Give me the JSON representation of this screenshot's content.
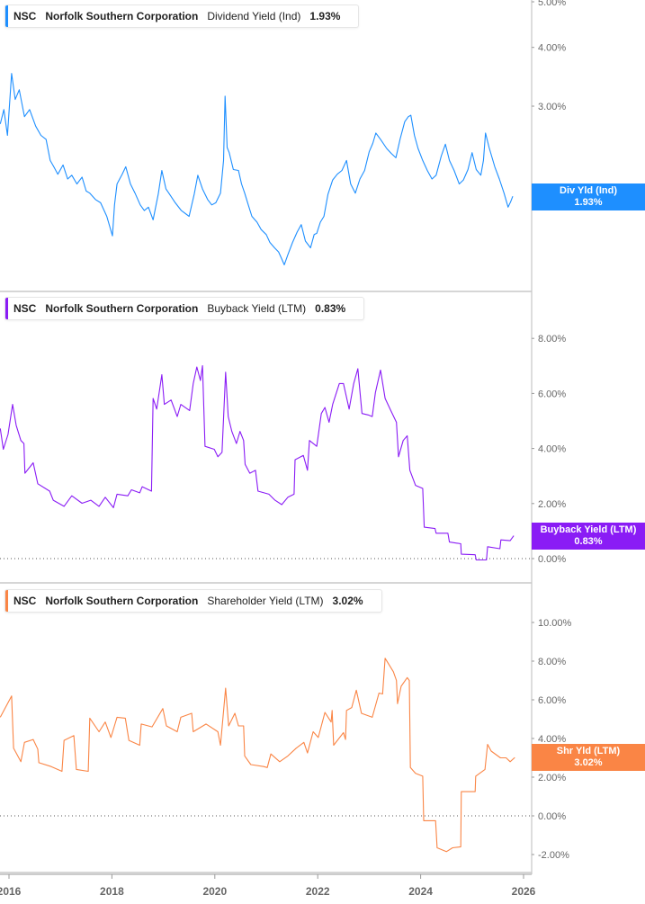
{
  "x_axis": {
    "ticks": [
      "2016",
      "2018",
      "2020",
      "2022",
      "2024",
      "2026"
    ],
    "range": [
      2015.83,
      2026.1
    ]
  },
  "chart_data": [
    {
      "type": "line",
      "yscale": "log",
      "ylim": [
        1.22,
        5.0
      ],
      "color": "#1e8fff",
      "legend": {
        "ticker": "NSC",
        "company": "Norfolk Southern Corporation",
        "metric": "Dividend Yield (Ind)",
        "value": "1.93%"
      },
      "flag": {
        "label": "Div Yld (Ind)",
        "value": "1.93%"
      },
      "yticks": [
        {
          "v": 5,
          "label": "5.00%"
        },
        {
          "v": 4,
          "label": "4.00%"
        },
        {
          "v": 3,
          "label": "3.00%"
        },
        {
          "v": 2,
          "label": "2.00%"
        }
      ],
      "zero_line": false,
      "points": [
        [
          2015.83,
          2.75
        ],
        [
          2015.9,
          2.95
        ],
        [
          2015.97,
          2.6
        ],
        [
          2016.05,
          3.52
        ],
        [
          2016.12,
          3.1
        ],
        [
          2016.2,
          3.25
        ],
        [
          2016.3,
          2.85
        ],
        [
          2016.4,
          2.95
        ],
        [
          2016.52,
          2.72
        ],
        [
          2016.62,
          2.6
        ],
        [
          2016.72,
          2.55
        ],
        [
          2016.8,
          2.3
        ],
        [
          2016.87,
          2.23
        ],
        [
          2016.95,
          2.15
        ],
        [
          2017.05,
          2.25
        ],
        [
          2017.14,
          2.1
        ],
        [
          2017.22,
          2.14
        ],
        [
          2017.32,
          2.05
        ],
        [
          2017.42,
          2.12
        ],
        [
          2017.5,
          1.98
        ],
        [
          2017.57,
          1.96
        ],
        [
          2017.68,
          1.9
        ],
        [
          2017.78,
          1.87
        ],
        [
          2017.9,
          1.75
        ],
        [
          2018.01,
          1.59
        ],
        [
          2018.05,
          1.85
        ],
        [
          2018.1,
          2.05
        ],
        [
          2018.2,
          2.15
        ],
        [
          2018.27,
          2.23
        ],
        [
          2018.36,
          2.05
        ],
        [
          2018.45,
          1.96
        ],
        [
          2018.55,
          1.85
        ],
        [
          2018.63,
          1.8
        ],
        [
          2018.71,
          1.83
        ],
        [
          2018.8,
          1.72
        ],
        [
          2018.9,
          1.95
        ],
        [
          2018.97,
          2.19
        ],
        [
          2019.05,
          2.0
        ],
        [
          2019.12,
          1.95
        ],
        [
          2019.23,
          1.87
        ],
        [
          2019.35,
          1.8
        ],
        [
          2019.5,
          1.75
        ],
        [
          2019.6,
          1.95
        ],
        [
          2019.67,
          2.14
        ],
        [
          2019.76,
          2.0
        ],
        [
          2019.86,
          1.9
        ],
        [
          2019.94,
          1.85
        ],
        [
          2020.02,
          1.87
        ],
        [
          2020.11,
          1.96
        ],
        [
          2020.17,
          2.3
        ],
        [
          2020.2,
          3.15
        ],
        [
          2020.24,
          2.45
        ],
        [
          2020.28,
          2.39
        ],
        [
          2020.36,
          2.2
        ],
        [
          2020.46,
          2.19
        ],
        [
          2020.52,
          2.05
        ],
        [
          2020.58,
          1.96
        ],
        [
          2020.65,
          1.85
        ],
        [
          2020.72,
          1.75
        ],
        [
          2020.82,
          1.7
        ],
        [
          2020.9,
          1.64
        ],
        [
          2021.0,
          1.6
        ],
        [
          2021.07,
          1.54
        ],
        [
          2021.16,
          1.5
        ],
        [
          2021.24,
          1.47
        ],
        [
          2021.3,
          1.42
        ],
        [
          2021.35,
          1.38
        ],
        [
          2021.42,
          1.45
        ],
        [
          2021.51,
          1.54
        ],
        [
          2021.6,
          1.62
        ],
        [
          2021.68,
          1.68
        ],
        [
          2021.76,
          1.55
        ],
        [
          2021.86,
          1.5
        ],
        [
          2021.93,
          1.6
        ],
        [
          2021.98,
          1.61
        ],
        [
          2022.05,
          1.7
        ],
        [
          2022.12,
          1.75
        ],
        [
          2022.2,
          1.95
        ],
        [
          2022.29,
          2.09
        ],
        [
          2022.38,
          2.15
        ],
        [
          2022.47,
          2.19
        ],
        [
          2022.56,
          2.3
        ],
        [
          2022.64,
          2.05
        ],
        [
          2022.73,
          1.96
        ],
        [
          2022.82,
          2.1
        ],
        [
          2022.91,
          2.19
        ],
        [
          2023.0,
          2.4
        ],
        [
          2023.07,
          2.5
        ],
        [
          2023.13,
          2.63
        ],
        [
          2023.22,
          2.55
        ],
        [
          2023.34,
          2.44
        ],
        [
          2023.43,
          2.38
        ],
        [
          2023.52,
          2.33
        ],
        [
          2023.6,
          2.55
        ],
        [
          2023.69,
          2.78
        ],
        [
          2023.76,
          2.85
        ],
        [
          2023.81,
          2.87
        ],
        [
          2023.88,
          2.6
        ],
        [
          2023.95,
          2.44
        ],
        [
          2024.04,
          2.3
        ],
        [
          2024.13,
          2.19
        ],
        [
          2024.22,
          2.1
        ],
        [
          2024.3,
          2.14
        ],
        [
          2024.4,
          2.35
        ],
        [
          2024.48,
          2.49
        ],
        [
          2024.56,
          2.3
        ],
        [
          2024.65,
          2.19
        ],
        [
          2024.75,
          2.05
        ],
        [
          2024.83,
          2.09
        ],
        [
          2024.92,
          2.2
        ],
        [
          2025.0,
          2.39
        ],
        [
          2025.08,
          2.2
        ],
        [
          2025.17,
          2.14
        ],
        [
          2025.22,
          2.3
        ],
        [
          2025.26,
          2.63
        ],
        [
          2025.33,
          2.45
        ],
        [
          2025.44,
          2.23
        ],
        [
          2025.53,
          2.1
        ],
        [
          2025.62,
          1.96
        ],
        [
          2025.7,
          1.83
        ],
        [
          2025.75,
          1.88
        ],
        [
          2025.79,
          1.93
        ]
      ]
    },
    {
      "type": "line",
      "yscale": "linear",
      "ylim": [
        -0.1,
        10.2
      ],
      "color": "#8a1cf5",
      "legend": {
        "ticker": "NSC",
        "company": "Norfolk Southern Corporation",
        "metric": "Buyback Yield (LTM)",
        "value": "0.83%"
      },
      "flag": {
        "label": "Buyback Yield (LTM)",
        "value": "0.83%"
      },
      "yticks": [
        {
          "v": 8,
          "label": "8.00%"
        },
        {
          "v": 6,
          "label": "6.00%"
        },
        {
          "v": 4,
          "label": "4.00%"
        },
        {
          "v": 2,
          "label": "2.00%"
        },
        {
          "v": 0,
          "label": "0.00%"
        }
      ],
      "zero_line": true,
      "points": [
        [
          2015.83,
          4.73
        ],
        [
          2015.89,
          3.97
        ],
        [
          2015.98,
          4.51
        ],
        [
          2016.07,
          5.6
        ],
        [
          2016.14,
          4.84
        ],
        [
          2016.23,
          4.29
        ],
        [
          2016.29,
          4.18
        ],
        [
          2016.31,
          3.1
        ],
        [
          2016.47,
          3.48
        ],
        [
          2016.56,
          2.72
        ],
        [
          2016.79,
          2.45
        ],
        [
          2016.86,
          2.12
        ],
        [
          2017.07,
          1.9
        ],
        [
          2017.22,
          2.28
        ],
        [
          2017.42,
          2.01
        ],
        [
          2017.59,
          2.12
        ],
        [
          2017.75,
          1.9
        ],
        [
          2017.87,
          2.23
        ],
        [
          2018.03,
          1.85
        ],
        [
          2018.1,
          2.34
        ],
        [
          2018.31,
          2.28
        ],
        [
          2018.38,
          2.5
        ],
        [
          2018.54,
          2.39
        ],
        [
          2018.59,
          2.61
        ],
        [
          2018.77,
          2.45
        ],
        [
          2018.8,
          5.82
        ],
        [
          2018.87,
          5.43
        ],
        [
          2018.97,
          6.68
        ],
        [
          2019.02,
          5.6
        ],
        [
          2019.15,
          5.76
        ],
        [
          2019.27,
          5.16
        ],
        [
          2019.34,
          5.6
        ],
        [
          2019.51,
          5.38
        ],
        [
          2019.58,
          6.36
        ],
        [
          2019.65,
          6.96
        ],
        [
          2019.72,
          6.47
        ],
        [
          2019.76,
          7.01
        ],
        [
          2019.81,
          4.08
        ],
        [
          2019.99,
          3.97
        ],
        [
          2020.06,
          3.7
        ],
        [
          2020.14,
          3.86
        ],
        [
          2020.21,
          6.77
        ],
        [
          2020.26,
          5.16
        ],
        [
          2020.33,
          4.62
        ],
        [
          2020.42,
          4.18
        ],
        [
          2020.49,
          4.62
        ],
        [
          2020.56,
          4.29
        ],
        [
          2020.59,
          3.42
        ],
        [
          2020.68,
          3.1
        ],
        [
          2020.79,
          3.21
        ],
        [
          2020.84,
          2.45
        ],
        [
          2021.05,
          2.34
        ],
        [
          2021.17,
          2.12
        ],
        [
          2021.3,
          1.96
        ],
        [
          2021.42,
          2.23
        ],
        [
          2021.54,
          2.34
        ],
        [
          2021.56,
          3.59
        ],
        [
          2021.72,
          3.75
        ],
        [
          2021.8,
          3.21
        ],
        [
          2021.84,
          4.29
        ],
        [
          2021.98,
          4.08
        ],
        [
          2022.07,
          5.27
        ],
        [
          2022.14,
          5.49
        ],
        [
          2022.22,
          4.95
        ],
        [
          2022.29,
          5.6
        ],
        [
          2022.42,
          6.36
        ],
        [
          2022.5,
          6.36
        ],
        [
          2022.61,
          5.43
        ],
        [
          2022.7,
          6.36
        ],
        [
          2022.78,
          6.9
        ],
        [
          2022.86,
          5.27
        ],
        [
          2022.98,
          5.22
        ],
        [
          2023.06,
          5.16
        ],
        [
          2023.12,
          6.03
        ],
        [
          2023.22,
          6.85
        ],
        [
          2023.31,
          5.82
        ],
        [
          2023.42,
          5.38
        ],
        [
          2023.53,
          4.95
        ],
        [
          2023.57,
          3.7
        ],
        [
          2023.66,
          4.29
        ],
        [
          2023.74,
          4.46
        ],
        [
          2023.79,
          3.21
        ],
        [
          2023.9,
          2.66
        ],
        [
          2024.04,
          2.55
        ],
        [
          2024.07,
          1.14
        ],
        [
          2024.28,
          1.09
        ],
        [
          2024.3,
          0.92
        ],
        [
          2024.53,
          0.92
        ],
        [
          2024.56,
          0.6
        ],
        [
          2024.78,
          0.54
        ],
        [
          2024.79,
          0.16
        ],
        [
          2025.06,
          0.14
        ],
        [
          2025.08,
          -0.05
        ],
        [
          2025.28,
          -0.05
        ],
        [
          2025.3,
          0.43
        ],
        [
          2025.54,
          0.36
        ],
        [
          2025.56,
          0.68
        ],
        [
          2025.74,
          0.65
        ],
        [
          2025.81,
          0.83
        ]
      ]
    },
    {
      "type": "line",
      "yscale": "linear",
      "ylim": [
        -2.9,
        12.0
      ],
      "color": "#fa8545",
      "legend": {
        "ticker": "NSC",
        "company": "Norfolk Southern Corporation",
        "metric": "Shareholder Yield (LTM)",
        "value": "3.02%"
      },
      "flag": {
        "label": "Shr Yld (LTM)",
        "value": "3.02%"
      },
      "yticks": [
        {
          "v": 10,
          "label": "10.00%"
        },
        {
          "v": 8,
          "label": "8.00%"
        },
        {
          "v": 6,
          "label": "6.00%"
        },
        {
          "v": 4,
          "label": "4.00%"
        },
        {
          "v": 2,
          "label": "2.00%"
        },
        {
          "v": 0,
          "label": "0.00%"
        },
        {
          "v": -2,
          "label": "-2.00%"
        }
      ],
      "zero_line": true,
      "points": [
        [
          2015.83,
          5.1
        ],
        [
          2016.05,
          6.2
        ],
        [
          2016.09,
          3.5
        ],
        [
          2016.23,
          2.8
        ],
        [
          2016.3,
          3.8
        ],
        [
          2016.47,
          3.95
        ],
        [
          2016.56,
          3.45
        ],
        [
          2016.58,
          2.75
        ],
        [
          2016.82,
          2.55
        ],
        [
          2017.03,
          2.3
        ],
        [
          2017.07,
          3.9
        ],
        [
          2017.26,
          4.15
        ],
        [
          2017.31,
          2.4
        ],
        [
          2017.54,
          2.3
        ],
        [
          2017.57,
          5.05
        ],
        [
          2017.75,
          4.35
        ],
        [
          2017.87,
          4.85
        ],
        [
          2017.98,
          4.05
        ],
        [
          2018.1,
          5.1
        ],
        [
          2018.26,
          5.05
        ],
        [
          2018.33,
          3.9
        ],
        [
          2018.54,
          3.65
        ],
        [
          2018.57,
          4.75
        ],
        [
          2018.78,
          4.6
        ],
        [
          2018.99,
          5.55
        ],
        [
          2019.06,
          4.65
        ],
        [
          2019.27,
          4.35
        ],
        [
          2019.34,
          5.1
        ],
        [
          2019.55,
          5.3
        ],
        [
          2019.58,
          4.35
        ],
        [
          2019.83,
          4.75
        ],
        [
          2020.06,
          4.35
        ],
        [
          2020.11,
          3.65
        ],
        [
          2020.21,
          6.6
        ],
        [
          2020.27,
          4.65
        ],
        [
          2020.39,
          5.3
        ],
        [
          2020.46,
          4.65
        ],
        [
          2020.56,
          4.65
        ],
        [
          2020.58,
          3.1
        ],
        [
          2020.7,
          2.65
        ],
        [
          2020.95,
          2.55
        ],
        [
          2021.02,
          2.5
        ],
        [
          2021.09,
          3.2
        ],
        [
          2021.26,
          2.8
        ],
        [
          2021.42,
          3.1
        ],
        [
          2021.58,
          3.5
        ],
        [
          2021.73,
          3.8
        ],
        [
          2021.8,
          3.25
        ],
        [
          2021.91,
          4.35
        ],
        [
          2022.01,
          4.05
        ],
        [
          2022.14,
          5.35
        ],
        [
          2022.26,
          4.85
        ],
        [
          2022.28,
          5.45
        ],
        [
          2022.31,
          3.65
        ],
        [
          2022.5,
          4.3
        ],
        [
          2022.54,
          3.95
        ],
        [
          2022.56,
          5.45
        ],
        [
          2022.66,
          5.6
        ],
        [
          2022.75,
          6.5
        ],
        [
          2022.85,
          5.3
        ],
        [
          2023.06,
          5.1
        ],
        [
          2023.19,
          6.35
        ],
        [
          2023.26,
          6.3
        ],
        [
          2023.31,
          8.15
        ],
        [
          2023.47,
          7.45
        ],
        [
          2023.53,
          7.0
        ],
        [
          2023.55,
          5.8
        ],
        [
          2023.62,
          6.7
        ],
        [
          2023.74,
          7.15
        ],
        [
          2023.78,
          7.0
        ],
        [
          2023.8,
          2.5
        ],
        [
          2023.9,
          2.2
        ],
        [
          2024.04,
          2.05
        ],
        [
          2024.06,
          -0.25
        ],
        [
          2024.29,
          -0.25
        ],
        [
          2024.32,
          -1.65
        ],
        [
          2024.5,
          -1.85
        ],
        [
          2024.62,
          -1.65
        ],
        [
          2024.78,
          -1.6
        ],
        [
          2024.79,
          1.25
        ],
        [
          2025.06,
          1.25
        ],
        [
          2025.07,
          2.05
        ],
        [
          2025.25,
          2.4
        ],
        [
          2025.3,
          3.7
        ],
        [
          2025.37,
          3.35
        ],
        [
          2025.55,
          3.0
        ],
        [
          2025.66,
          3.0
        ],
        [
          2025.74,
          2.8
        ],
        [
          2025.83,
          3.02
        ]
      ]
    }
  ]
}
